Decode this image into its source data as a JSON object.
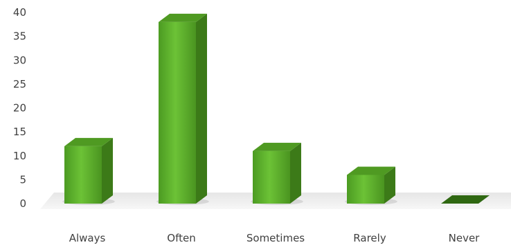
{
  "chart_data": {
    "type": "bar",
    "categories": [
      "Always",
      "Often",
      "Sometimes",
      "Rarely",
      "Never"
    ],
    "values": [
      12,
      38,
      11,
      6,
      0.2
    ],
    "ylim": [
      0,
      40
    ],
    "yticks": [
      0,
      5,
      10,
      15,
      20,
      25,
      30,
      35,
      40
    ],
    "title": "",
    "xlabel": "",
    "ylabel": "",
    "grid": false,
    "legend": "none",
    "bar_color": "#5fae2c",
    "bar_side_color": "#3c7a18",
    "bar_top_color": "#4f9a22"
  }
}
